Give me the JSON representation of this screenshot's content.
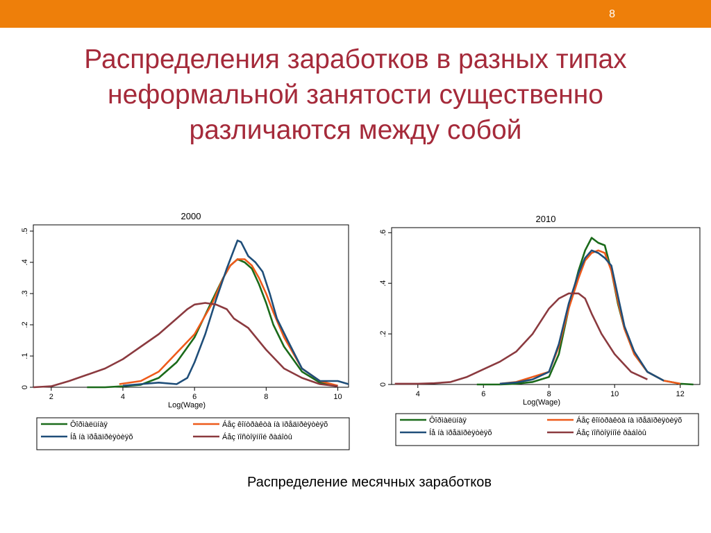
{
  "slide": {
    "number": "8",
    "title_lines": [
      "Распределения заработков в разных типах",
      "неформальной занятости существенно",
      "различаются между собой"
    ],
    "caption": "Распределение месячных заработков"
  },
  "colors": {
    "header_bar": "#ee7f0a",
    "title": "#a52a3a",
    "series": [
      "#1a6a1a",
      "#ee5a1a",
      "#1f4e79",
      "#8b3a3f"
    ]
  },
  "legend_labels": [
    "Ôîðìàëüíàÿ",
    "Áåç êîíòðàêòà íà ïðåäïðèÿòèÿõ",
    "Íå íà ïðåäïðèÿòèÿõ",
    "Áåç ïîñòîÿííîé ðàáîòû"
  ],
  "chart_data": [
    {
      "type": "line",
      "title": "2000",
      "xlabel": "Log(Wage)",
      "ylabel": "",
      "xlim": [
        1.5,
        10.3
      ],
      "ylim": [
        0,
        0.52
      ],
      "x_ticks": [
        2,
        4,
        6,
        8,
        10
      ],
      "x_tick_labels": [
        "2",
        "4",
        "6",
        "8",
        "10"
      ],
      "y_ticks": [
        0,
        0.1,
        0.2,
        0.3,
        0.4,
        0.5
      ],
      "y_tick_labels": [
        "0",
        ".1",
        ".2",
        ".3",
        ".4",
        ".5"
      ],
      "legend_position": "bottom",
      "series": [
        {
          "name": "Ôîðìàëüíàÿ",
          "x": [
            3.0,
            3.5,
            4.0,
            4.5,
            5.0,
            5.5,
            6.0,
            6.5,
            6.8,
            7.0,
            7.2,
            7.4,
            7.6,
            7.8,
            8.0,
            8.2,
            8.5,
            9.0,
            9.5,
            10.0
          ],
          "y": [
            0,
            0,
            0.003,
            0.008,
            0.03,
            0.08,
            0.16,
            0.28,
            0.35,
            0.39,
            0.41,
            0.4,
            0.38,
            0.33,
            0.27,
            0.2,
            0.13,
            0.05,
            0.015,
            0.003
          ]
        },
        {
          "name": "Áåç êîíòðàêòà íà ïðåäïðèÿòèÿõ",
          "x": [
            3.9,
            4.5,
            5.0,
            5.5,
            6.0,
            6.5,
            6.8,
            7.0,
            7.2,
            7.4,
            7.6,
            7.8,
            8.0,
            8.2,
            8.5,
            9.0,
            9.5,
            10.0
          ],
          "y": [
            0.01,
            0.02,
            0.05,
            0.11,
            0.17,
            0.27,
            0.35,
            0.39,
            0.41,
            0.41,
            0.39,
            0.35,
            0.3,
            0.24,
            0.16,
            0.06,
            0.02,
            0.005
          ]
        },
        {
          "name": "Íå íà ïðåäïðèÿòèÿõ",
          "x": [
            4.0,
            4.5,
            5.0,
            5.5,
            5.8,
            6.0,
            6.3,
            6.6,
            6.9,
            7.1,
            7.2,
            7.3,
            7.5,
            7.7,
            7.9,
            8.1,
            8.3,
            8.6,
            9.0,
            9.5,
            10.0,
            10.3
          ],
          "y": [
            0.005,
            0.01,
            0.015,
            0.01,
            0.03,
            0.08,
            0.17,
            0.28,
            0.38,
            0.44,
            0.47,
            0.465,
            0.42,
            0.4,
            0.37,
            0.3,
            0.22,
            0.15,
            0.06,
            0.02,
            0.02,
            0.01
          ]
        },
        {
          "name": "Áåç ïîñòîÿííîé ðàáîòû",
          "x": [
            1.5,
            2.0,
            2.5,
            3.0,
            3.5,
            4.0,
            4.5,
            5.0,
            5.5,
            5.8,
            6.0,
            6.3,
            6.6,
            6.9,
            7.1,
            7.5,
            8.0,
            8.5,
            9.0,
            9.5,
            10.0
          ],
          "y": [
            0,
            0.003,
            0.02,
            0.04,
            0.06,
            0.09,
            0.13,
            0.17,
            0.22,
            0.25,
            0.265,
            0.27,
            0.265,
            0.25,
            0.22,
            0.19,
            0.12,
            0.06,
            0.03,
            0.01,
            0.003
          ]
        }
      ]
    },
    {
      "type": "line",
      "title": "2010",
      "xlabel": "Log(Wage)",
      "ylabel": "",
      "xlim": [
        3.2,
        12.6
      ],
      "ylim": [
        0,
        0.62
      ],
      "x_ticks": [
        4,
        6,
        8,
        10,
        12
      ],
      "x_tick_labels": [
        "4",
        "6",
        "8",
        "10",
        "12"
      ],
      "y_ticks": [
        0,
        0.2,
        0.4,
        0.6
      ],
      "y_tick_labels": [
        "0",
        ".2",
        ".4",
        ".6"
      ],
      "legend_position": "bottom",
      "series": [
        {
          "name": "Ôîðìàëüíàÿ",
          "x": [
            5.8,
            6.5,
            7.0,
            7.5,
            8.0,
            8.3,
            8.6,
            8.9,
            9.1,
            9.3,
            9.5,
            9.7,
            9.9,
            10.1,
            10.3,
            10.6,
            11.0,
            11.5,
            12.0,
            12.4
          ],
          "y": [
            0,
            0,
            0.003,
            0.01,
            0.03,
            0.12,
            0.3,
            0.45,
            0.53,
            0.58,
            0.56,
            0.55,
            0.45,
            0.32,
            0.22,
            0.12,
            0.05,
            0.015,
            0.003,
            0
          ]
        },
        {
          "name": "Áåç êîíòðàêòà íà ïðåäïðèÿòèÿõ",
          "x": [
            6.5,
            7.0,
            7.5,
            8.0,
            8.3,
            8.6,
            8.9,
            9.1,
            9.3,
            9.5,
            9.7,
            9.9,
            10.1,
            10.3,
            10.6,
            11.0,
            11.5,
            12.0
          ],
          "y": [
            0.003,
            0.01,
            0.03,
            0.05,
            0.15,
            0.3,
            0.42,
            0.49,
            0.52,
            0.53,
            0.52,
            0.45,
            0.33,
            0.22,
            0.12,
            0.05,
            0.015,
            0.003
          ]
        },
        {
          "name": "Íå íà ïðåäïðèÿòèÿõ",
          "x": [
            6.5,
            7.0,
            7.5,
            8.0,
            8.3,
            8.6,
            8.9,
            9.1,
            9.3,
            9.5,
            9.7,
            9.9,
            10.1,
            10.3,
            10.6,
            11.0,
            11.5
          ],
          "y": [
            0.003,
            0.008,
            0.02,
            0.05,
            0.16,
            0.32,
            0.44,
            0.5,
            0.53,
            0.52,
            0.5,
            0.47,
            0.35,
            0.23,
            0.13,
            0.05,
            0.015
          ]
        },
        {
          "name": "Áåç ïîñòîÿííîé ðàáîòû",
          "x": [
            3.3,
            4.0,
            4.5,
            5.0,
            5.5,
            6.0,
            6.5,
            7.0,
            7.5,
            8.0,
            8.3,
            8.6,
            8.9,
            9.1,
            9.3,
            9.6,
            10.0,
            10.5,
            11.0
          ],
          "y": [
            0.003,
            0.003,
            0.005,
            0.01,
            0.03,
            0.06,
            0.09,
            0.13,
            0.2,
            0.3,
            0.34,
            0.36,
            0.36,
            0.34,
            0.28,
            0.2,
            0.12,
            0.05,
            0.02
          ]
        }
      ]
    }
  ]
}
